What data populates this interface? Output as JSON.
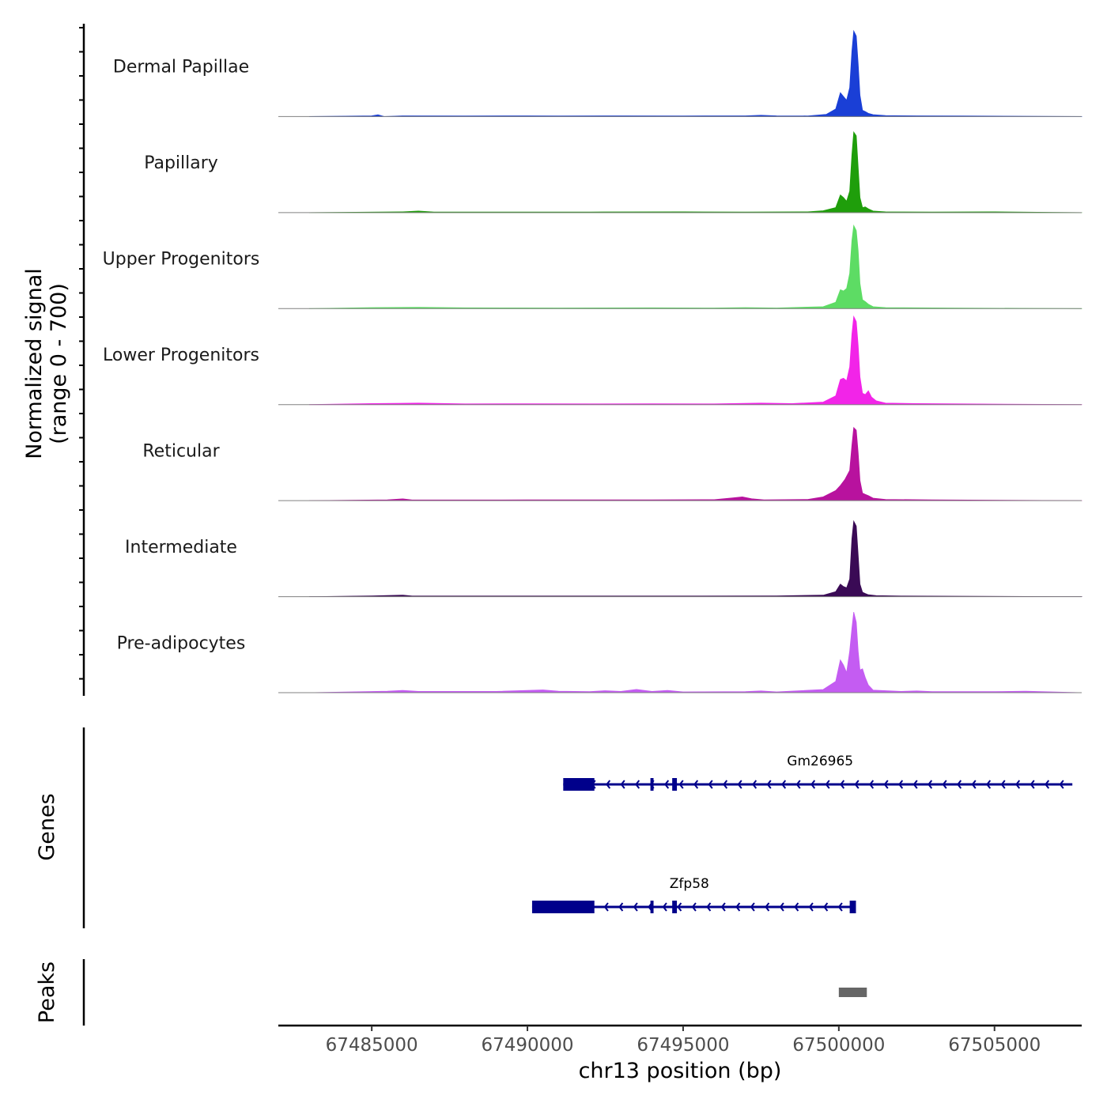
{
  "chart_data": {
    "type": "area",
    "title": "",
    "ylabel": "Normalized signal",
    "ylabel_range": "(range 0 - 700)",
    "xlabel": "chr13 position (bp)",
    "xlim": [
      67482000,
      67507800
    ],
    "ylim": [
      0,
      700
    ],
    "x_ticks": [
      67485000,
      67490000,
      67495000,
      67500000,
      67505000
    ],
    "x_tick_labels": [
      "67485000",
      "67490000",
      "67495000",
      "67500000",
      "67505000"
    ],
    "series": [
      {
        "name": "Dermal Papillae",
        "color": "#1a3fd6",
        "points": [
          [
            67483000,
            0
          ],
          [
            67485000,
            6
          ],
          [
            67485200,
            14
          ],
          [
            67485400,
            0
          ],
          [
            67486000,
            6
          ],
          [
            67488000,
            5
          ],
          [
            67490000,
            6
          ],
          [
            67491000,
            5
          ],
          [
            67493000,
            6
          ],
          [
            67495000,
            5
          ],
          [
            67497000,
            6
          ],
          [
            67497500,
            10
          ],
          [
            67498000,
            6
          ],
          [
            67499000,
            5
          ],
          [
            67499600,
            18
          ],
          [
            67499900,
            60
          ],
          [
            67500050,
            190
          ],
          [
            67500150,
            160
          ],
          [
            67500250,
            130
          ],
          [
            67500350,
            230
          ],
          [
            67500420,
            520
          ],
          [
            67500480,
            680
          ],
          [
            67500560,
            640
          ],
          [
            67500620,
            420
          ],
          [
            67500680,
            170
          ],
          [
            67500760,
            50
          ],
          [
            67500850,
            40
          ],
          [
            67500950,
            25
          ],
          [
            67501100,
            15
          ],
          [
            67501500,
            8
          ],
          [
            67502500,
            6
          ],
          [
            67504000,
            5
          ],
          [
            67507800,
            0
          ]
        ]
      },
      {
        "name": "Papillary",
        "color": "#1f9e0b",
        "points": [
          [
            67483000,
            0
          ],
          [
            67486000,
            6
          ],
          [
            67486500,
            12
          ],
          [
            67487000,
            5
          ],
          [
            67489000,
            5
          ],
          [
            67492000,
            5
          ],
          [
            67495000,
            6
          ],
          [
            67497000,
            5
          ],
          [
            67499000,
            6
          ],
          [
            67499500,
            15
          ],
          [
            67499900,
            40
          ],
          [
            67500050,
            140
          ],
          [
            67500150,
            120
          ],
          [
            67500250,
            90
          ],
          [
            67500350,
            170
          ],
          [
            67500420,
            460
          ],
          [
            67500480,
            640
          ],
          [
            67500560,
            610
          ],
          [
            67500620,
            360
          ],
          [
            67500680,
            120
          ],
          [
            67500760,
            40
          ],
          [
            67500850,
            45
          ],
          [
            67500950,
            30
          ],
          [
            67501100,
            12
          ],
          [
            67501500,
            6
          ],
          [
            67503000,
            5
          ],
          [
            67505000,
            6
          ],
          [
            67507800,
            0
          ]
        ]
      },
      {
        "name": "Upper Progenitors",
        "color": "#5ddc64",
        "points": [
          [
            67483000,
            0
          ],
          [
            67485000,
            8
          ],
          [
            67486500,
            10
          ],
          [
            67488000,
            6
          ],
          [
            67491000,
            5
          ],
          [
            67494000,
            6
          ],
          [
            67496000,
            5
          ],
          [
            67497000,
            8
          ],
          [
            67498000,
            5
          ],
          [
            67499500,
            15
          ],
          [
            67499900,
            50
          ],
          [
            67500050,
            150
          ],
          [
            67500150,
            140
          ],
          [
            67500250,
            160
          ],
          [
            67500350,
            280
          ],
          [
            67500420,
            540
          ],
          [
            67500480,
            660
          ],
          [
            67500560,
            620
          ],
          [
            67500620,
            460
          ],
          [
            67500680,
            200
          ],
          [
            67500760,
            70
          ],
          [
            67500850,
            55
          ],
          [
            67500950,
            35
          ],
          [
            67501100,
            15
          ],
          [
            67501500,
            8
          ],
          [
            67503500,
            5
          ],
          [
            67507800,
            0
          ]
        ]
      },
      {
        "name": "Lower Progenitors",
        "color": "#f224e8",
        "points": [
          [
            67483000,
            0
          ],
          [
            67485000,
            8
          ],
          [
            67486500,
            12
          ],
          [
            67488000,
            6
          ],
          [
            67490000,
            7
          ],
          [
            67492000,
            6
          ],
          [
            67494000,
            7
          ],
          [
            67496000,
            6
          ],
          [
            67497500,
            12
          ],
          [
            67498500,
            8
          ],
          [
            67499500,
            20
          ],
          [
            67499900,
            70
          ],
          [
            67500050,
            200
          ],
          [
            67500150,
            210
          ],
          [
            67500250,
            190
          ],
          [
            67500350,
            300
          ],
          [
            67500420,
            560
          ],
          [
            67500480,
            700
          ],
          [
            67500560,
            660
          ],
          [
            67500620,
            470
          ],
          [
            67500680,
            220
          ],
          [
            67500760,
            90
          ],
          [
            67500850,
            80
          ],
          [
            67500950,
            110
          ],
          [
            67501050,
            60
          ],
          [
            67501200,
            30
          ],
          [
            67501500,
            12
          ],
          [
            67502500,
            8
          ],
          [
            67504000,
            6
          ],
          [
            67507800,
            0
          ]
        ]
      },
      {
        "name": "Reticular",
        "color": "#b8129e",
        "points": [
          [
            67483000,
            0
          ],
          [
            67485500,
            6
          ],
          [
            67486000,
            14
          ],
          [
            67486300,
            5
          ],
          [
            67490000,
            6
          ],
          [
            67494000,
            6
          ],
          [
            67496000,
            8
          ],
          [
            67496600,
            22
          ],
          [
            67496900,
            30
          ],
          [
            67497200,
            15
          ],
          [
            67497600,
            6
          ],
          [
            67499000,
            10
          ],
          [
            67499500,
            30
          ],
          [
            67499900,
            80
          ],
          [
            67500050,
            120
          ],
          [
            67500200,
            170
          ],
          [
            67500350,
            240
          ],
          [
            67500420,
            440
          ],
          [
            67500480,
            580
          ],
          [
            67500560,
            560
          ],
          [
            67500620,
            380
          ],
          [
            67500680,
            160
          ],
          [
            67500760,
            60
          ],
          [
            67500850,
            50
          ],
          [
            67500950,
            40
          ],
          [
            67501100,
            20
          ],
          [
            67501500,
            10
          ],
          [
            67503000,
            6
          ],
          [
            67507800,
            0
          ]
        ]
      },
      {
        "name": "Intermediate",
        "color": "#3a0a55",
        "points": [
          [
            67483000,
            0
          ],
          [
            67485000,
            6
          ],
          [
            67486000,
            12
          ],
          [
            67486300,
            5
          ],
          [
            67489000,
            5
          ],
          [
            67492000,
            5
          ],
          [
            67495000,
            5
          ],
          [
            67498000,
            6
          ],
          [
            67499500,
            12
          ],
          [
            67499900,
            40
          ],
          [
            67500050,
            100
          ],
          [
            67500150,
            80
          ],
          [
            67500250,
            70
          ],
          [
            67500350,
            140
          ],
          [
            67500420,
            460
          ],
          [
            67500480,
            600
          ],
          [
            67500560,
            560
          ],
          [
            67500620,
            330
          ],
          [
            67500680,
            100
          ],
          [
            67500760,
            35
          ],
          [
            67500850,
            25
          ],
          [
            67500950,
            15
          ],
          [
            67501200,
            8
          ],
          [
            67502000,
            5
          ],
          [
            67507800,
            0
          ]
        ]
      },
      {
        "name": "Pre-adipocytes",
        "color": "#c45cf2",
        "points": [
          [
            67483000,
            0
          ],
          [
            67485500,
            12
          ],
          [
            67486000,
            18
          ],
          [
            67486500,
            10
          ],
          [
            67489000,
            10
          ],
          [
            67490000,
            18
          ],
          [
            67490500,
            22
          ],
          [
            67491000,
            12
          ],
          [
            67492000,
            8
          ],
          [
            67492500,
            16
          ],
          [
            67493000,
            10
          ],
          [
            67493500,
            26
          ],
          [
            67494000,
            10
          ],
          [
            67494500,
            18
          ],
          [
            67495000,
            6
          ],
          [
            67497000,
            8
          ],
          [
            67497500,
            14
          ],
          [
            67498000,
            6
          ],
          [
            67499500,
            25
          ],
          [
            67499900,
            90
          ],
          [
            67500050,
            260
          ],
          [
            67500150,
            220
          ],
          [
            67500250,
            160
          ],
          [
            67500350,
            330
          ],
          [
            67500420,
            510
          ],
          [
            67500480,
            640
          ],
          [
            67500560,
            560
          ],
          [
            67500620,
            330
          ],
          [
            67500680,
            180
          ],
          [
            67500760,
            190
          ],
          [
            67500850,
            120
          ],
          [
            67500950,
            60
          ],
          [
            67501100,
            20
          ],
          [
            67502000,
            10
          ],
          [
            67502500,
            14
          ],
          [
            67503000,
            8
          ],
          [
            67505000,
            8
          ],
          [
            67506000,
            12
          ],
          [
            67507800,
            0
          ]
        ]
      }
    ],
    "genes": [
      {
        "name": "Gm26965",
        "start": 67491150,
        "end": 67507500,
        "strand": "-",
        "exons": [
          [
            67491150,
            67492150
          ],
          [
            67493950,
            67494050
          ],
          [
            67494650,
            67494800
          ]
        ]
      },
      {
        "name": "Zfp58",
        "start": 67490150,
        "end": 67500550,
        "strand": "-",
        "exons": [
          [
            67490150,
            67492150
          ],
          [
            67493950,
            67494050
          ],
          [
            67494650,
            67494800
          ],
          [
            67500350,
            67500550
          ]
        ]
      }
    ],
    "gene_color": "#00008b",
    "peaks": [
      {
        "start": 67500000,
        "end": 67500900
      }
    ],
    "peak_color": "#666666",
    "baseline_color": "#808080",
    "gene_track_title": "Genes",
    "peak_track_title": "Peaks"
  }
}
